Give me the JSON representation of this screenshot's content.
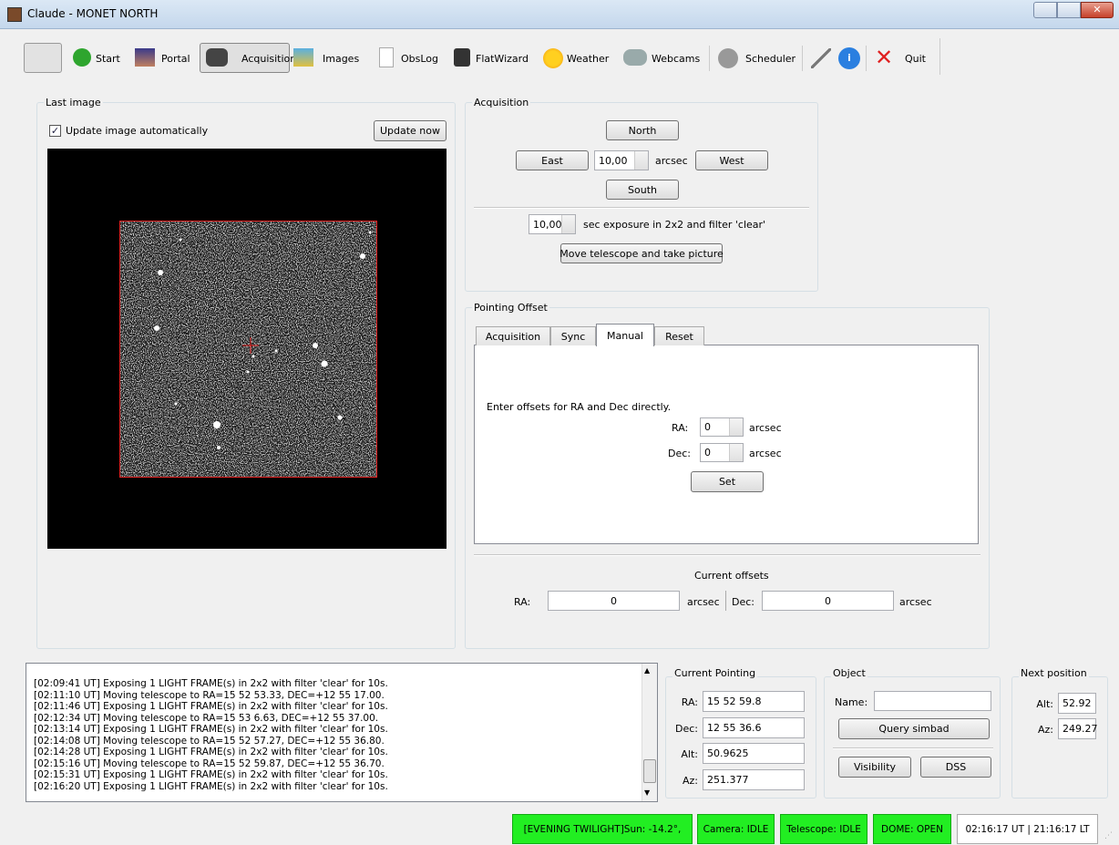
{
  "window": {
    "title": "Claude - MONET NORTH"
  },
  "toolbar": {
    "items": [
      "Start",
      "Portal",
      "Acquisition",
      "Images",
      "ObsLog",
      "FlatWizard",
      "Weather",
      "Webcams",
      "Scheduler",
      "Quit"
    ]
  },
  "last_image": {
    "title": "Last image",
    "checkbox": "Update image automatically",
    "button": "Update now"
  },
  "acquisition": {
    "title": "Acquisition",
    "north": "North",
    "east": "East",
    "west": "West",
    "south": "South",
    "step": "10,00",
    "unit": "arcsec",
    "exposure": "10,00",
    "exposure_text": "sec exposure in 2x2 and filter 'clear'",
    "button": "Move telescope and take picture"
  },
  "pointing_offset": {
    "title": "Pointing Offset",
    "tabs": [
      "Acquisition",
      "Sync",
      "Manual",
      "Reset"
    ],
    "instruction": "Enter offsets for RA and Dec directly.",
    "ra_label": "RA:",
    "ra_value": "0",
    "dec_label": "Dec:",
    "dec_value": "0",
    "unit": "arcsec",
    "set": "Set",
    "current_offsets": {
      "title": "Current offsets",
      "ra_label": "RA:",
      "ra_value": "0",
      "dec_label": "Dec:",
      "dec_value": "0",
      "unit": "arcsec"
    }
  },
  "log": {
    "lines": [
      "[02:09:41 UT] Exposing 1 LIGHT FRAME(s) in 2x2 with filter 'clear' for 10s.",
      "[02:11:10 UT] Moving telescope to RA=15 52 53.33, DEC=+12 55 17.00.",
      "[02:11:46 UT] Exposing 1 LIGHT FRAME(s) in 2x2 with filter 'clear' for 10s.",
      "[02:12:34 UT] Moving telescope to RA=15 53 6.63, DEC=+12 55 37.00.",
      "[02:13:14 UT] Exposing 1 LIGHT FRAME(s) in 2x2 with filter 'clear' for 10s.",
      "[02:14:08 UT] Moving telescope to RA=15 52 57.27, DEC=+12 55 36.80.",
      "[02:14:28 UT] Exposing 1 LIGHT FRAME(s) in 2x2 with filter 'clear' for 10s.",
      "[02:15:16 UT] Moving telescope to RA=15 52 59.87, DEC=+12 55 36.70.",
      "[02:15:31 UT] Exposing 1 LIGHT FRAME(s) in 2x2 with filter 'clear' for 10s.",
      "[02:16:20 UT] Exposing 1 LIGHT FRAME(s) in 2x2 with filter 'clear' for 10s."
    ]
  },
  "current_pointing": {
    "title": "Current Pointing",
    "fields": [
      {
        "label": "RA:",
        "value": "15 52 59.8"
      },
      {
        "label": "Dec:",
        "value": "12 55 36.6"
      },
      {
        "label": "Alt:",
        "value": "50.9625"
      },
      {
        "label": "Az:",
        "value": "251.377"
      }
    ]
  },
  "object": {
    "title": "Object",
    "name_label": "Name:",
    "query": "Query simbad",
    "visibility": "Visibility",
    "dss": "DSS"
  },
  "next_position": {
    "title": "Next position",
    "fields": [
      {
        "label": "Alt:",
        "value": "52.92"
      },
      {
        "label": "Az:",
        "value": "249.27"
      }
    ]
  },
  "status": [
    "[EVENING TWILIGHT]Sun: -14.2°,",
    "Camera: IDLE",
    "Telescope: IDLE",
    "DOME: OPEN",
    "02:16:17 UT | 21:16:17 LT"
  ]
}
